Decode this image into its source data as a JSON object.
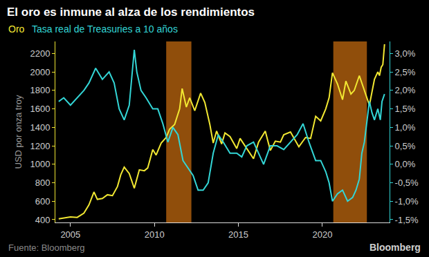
{
  "chart_data": {
    "type": "line",
    "title": "El oro es inmune al alza de los rendimientos",
    "y_label": "USD por onza troy",
    "source": "Fuente: Bloomberg",
    "brand": "Bloomberg",
    "legend": "top left",
    "grid": false,
    "xlim": [
      2004.1,
      2024.0
    ],
    "xticks": [
      2005,
      2010,
      2015,
      2020
    ],
    "ylim": [
      370,
      2330
    ],
    "yticks": [
      400,
      600,
      800,
      1000,
      1200,
      1400,
      1600,
      1800,
      2000,
      2200
    ],
    "y2lim": [
      -1.575,
      3.325
    ],
    "y2ticks": [
      {
        "value": -1.5,
        "label": "-1,5%"
      },
      {
        "value": -1.0,
        "label": "-1,0%"
      },
      {
        "value": -0.5,
        "label": "-0,5%"
      },
      {
        "value": 0.0,
        "label": "0,0%"
      },
      {
        "value": 0.5,
        "label": "0,5%"
      },
      {
        "value": 1.0,
        "label": "1,0%"
      },
      {
        "value": 1.5,
        "label": "1,5%"
      },
      {
        "value": 2.0,
        "label": "2,0%"
      },
      {
        "value": 2.5,
        "label": "2,5%"
      },
      {
        "value": 3.0,
        "label": "3,0%"
      }
    ],
    "shaded_ranges": [
      {
        "start": 2010.7,
        "end": 2012.2,
        "color": "#c0680f"
      },
      {
        "start": 2020.65,
        "end": 2022.65,
        "color": "#c0680f"
      }
    ],
    "series": [
      {
        "name": "Oro",
        "color": "#f2e832",
        "x": [
          2004.3,
          2004.6,
          2005.0,
          2005.4,
          2005.8,
          2006.1,
          2006.4,
          2006.6,
          2006.9,
          2007.2,
          2007.5,
          2007.8,
          2008.0,
          2008.2,
          2008.5,
          2008.8,
          2009.1,
          2009.4,
          2009.6,
          2009.9,
          2010.1,
          2010.4,
          2010.7,
          2010.9,
          2011.2,
          2011.5,
          2011.65,
          2011.9,
          2012.1,
          2012.4,
          2012.75,
          2013.0,
          2013.3,
          2013.5,
          2013.7,
          2014.0,
          2014.2,
          2014.5,
          2014.9,
          2015.1,
          2015.5,
          2015.9,
          2016.2,
          2016.6,
          2016.9,
          2017.2,
          2017.5,
          2017.7,
          2018.1,
          2018.6,
          2019.0,
          2019.3,
          2019.6,
          2019.9,
          2020.2,
          2020.4,
          2020.6,
          2020.9,
          2021.2,
          2021.4,
          2021.7,
          2021.9,
          2022.2,
          2022.5,
          2022.8,
          2023.1,
          2023.3,
          2023.4,
          2023.5,
          2023.6,
          2023.7
        ],
        "values": [
          410,
          420,
          430,
          425,
          470,
          560,
          700,
          620,
          630,
          670,
          660,
          760,
          890,
          970,
          900,
          740,
          940,
          930,
          960,
          1160,
          1100,
          1230,
          1290,
          1380,
          1430,
          1600,
          1820,
          1620,
          1720,
          1580,
          1770,
          1670,
          1430,
          1230,
          1360,
          1220,
          1340,
          1300,
          1170,
          1280,
          1170,
          1060,
          1240,
          1360,
          1150,
          1250,
          1240,
          1320,
          1350,
          1190,
          1290,
          1280,
          1520,
          1470,
          1600,
          1720,
          1990,
          1870,
          1700,
          1900,
          1760,
          1800,
          1960,
          1800,
          1640,
          1920,
          2000,
          1960,
          2050,
          2080,
          2300
        ]
      },
      {
        "name": "Tasa real de Treasuries a 10 años",
        "color": "#33d6d6",
        "axis": "y2",
        "x": [
          2004.3,
          2004.6,
          2005.0,
          2005.4,
          2005.8,
          2006.1,
          2006.5,
          2006.9,
          2007.3,
          2007.6,
          2007.9,
          2008.2,
          2008.5,
          2008.8,
          2008.95,
          2009.2,
          2009.5,
          2009.9,
          2010.2,
          2010.5,
          2010.8,
          2011.1,
          2011.4,
          2011.7,
          2012.0,
          2012.3,
          2012.6,
          2012.9,
          2013.2,
          2013.5,
          2013.8,
          2014.1,
          2014.5,
          2014.9,
          2015.2,
          2015.5,
          2015.9,
          2016.2,
          2016.5,
          2016.9,
          2017.3,
          2017.7,
          2018.1,
          2018.5,
          2018.85,
          2019.2,
          2019.6,
          2019.9,
          2020.2,
          2020.4,
          2020.6,
          2020.9,
          2021.2,
          2021.5,
          2021.8,
          2022.0,
          2022.2,
          2022.35,
          2022.5,
          2022.65,
          2022.8,
          2022.95,
          2023.1,
          2023.3,
          2023.45,
          2023.55,
          2023.7
        ],
        "values": [
          1.7,
          1.8,
          1.6,
          1.8,
          2.0,
          2.2,
          2.6,
          2.3,
          2.5,
          2.2,
          1.5,
          1.2,
          1.6,
          3.1,
          2.5,
          2.0,
          1.8,
          1.5,
          1.5,
          1.1,
          0.6,
          1.0,
          0.8,
          0.1,
          -0.1,
          -0.3,
          -0.7,
          -0.7,
          -0.5,
          0.3,
          0.8,
          0.6,
          0.3,
          0.3,
          0.2,
          0.5,
          0.6,
          0.3,
          0.0,
          0.5,
          0.5,
          0.4,
          0.6,
          0.8,
          1.1,
          0.6,
          0.1,
          0.1,
          -0.2,
          -0.5,
          -1.0,
          -0.8,
          -0.7,
          -1.0,
          -0.9,
          -0.7,
          -0.4,
          0.3,
          0.6,
          1.2,
          1.7,
          1.4,
          1.2,
          1.5,
          1.2,
          1.7,
          1.9
        ]
      }
    ]
  }
}
